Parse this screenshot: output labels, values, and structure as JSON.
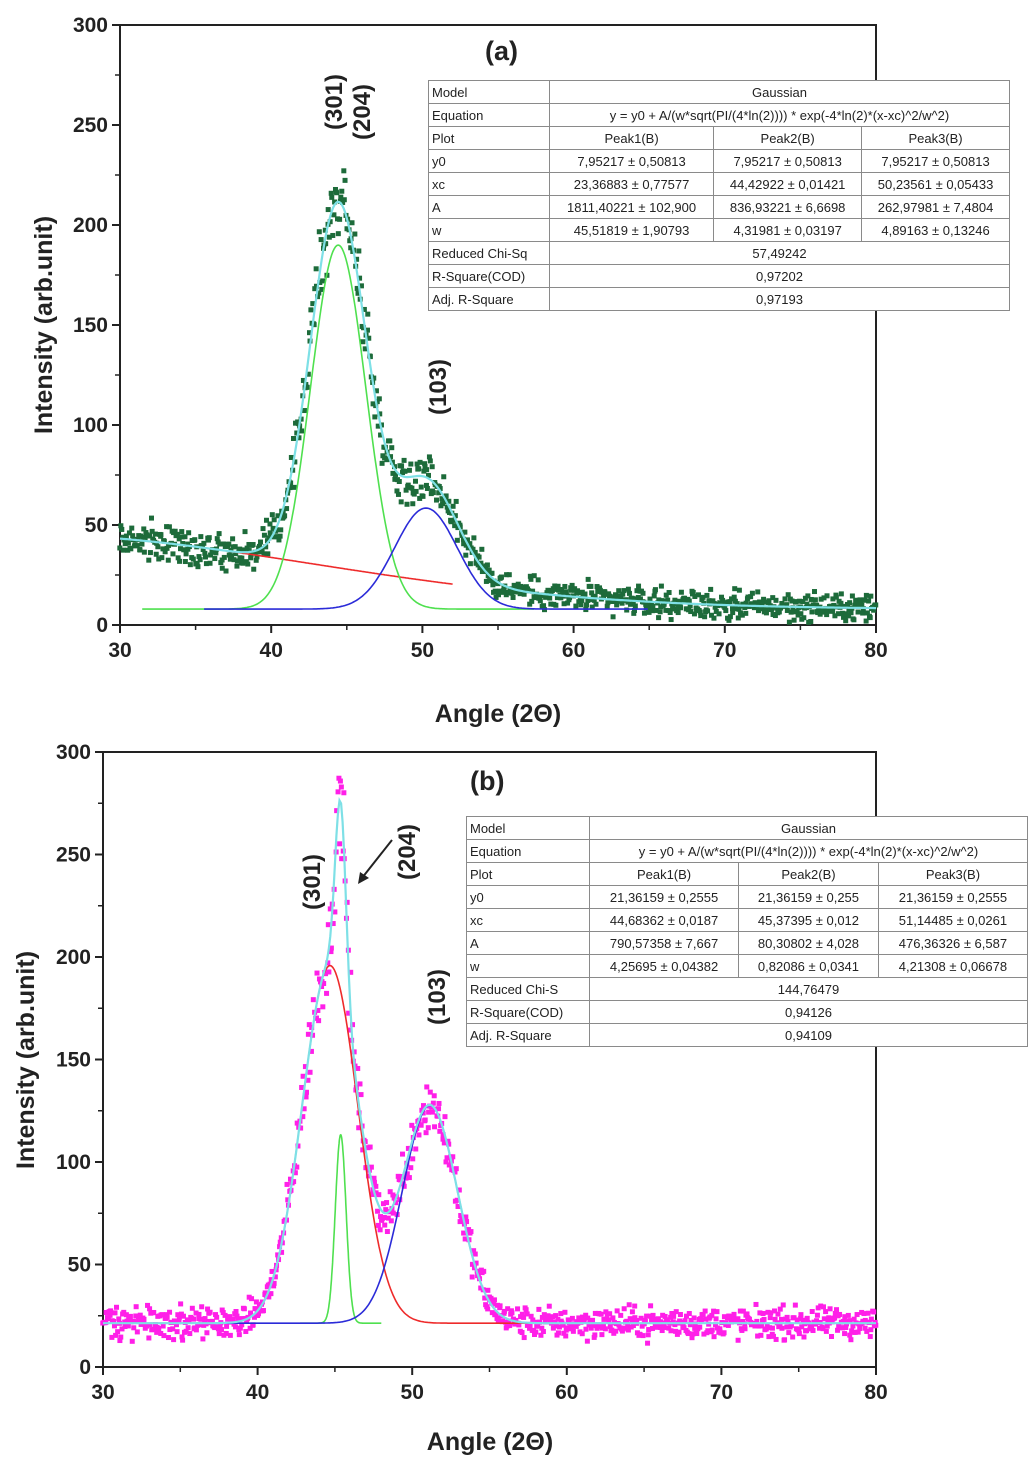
{
  "chart_data": [
    {
      "type": "scatter",
      "panel_label": "(a)",
      "xlabel": "Angle (2Θ)",
      "ylabel": "Intensity (arb.unit)",
      "xlim": [
        30,
        80
      ],
      "ylim": [
        0,
        300
      ],
      "x_ticks": [
        "30",
        "40",
        "50",
        "60",
        "70",
        "80"
      ],
      "y_ticks": [
        "0",
        "50",
        "100",
        "150",
        "200",
        "250",
        "300"
      ],
      "peak_labels": [
        "(301)",
        "(204)",
        "(103)"
      ],
      "colors": {
        "data": "#1d6b3a",
        "envelope": "#7ee0e6",
        "peak1": "#ee2b2b",
        "peak2": "#4fe04f",
        "peak3": "#2b2bd8"
      },
      "series": [
        {
          "name": "Peak1(B)",
          "model": "gaussian",
          "y0": 7.95217,
          "xc": 23.36883,
          "A": 1811.40221,
          "w": 45.51819
        },
        {
          "name": "Peak2(B)",
          "model": "gaussian",
          "y0": 7.95217,
          "xc": 44.42922,
          "A": 836.93221,
          "w": 4.31981
        },
        {
          "name": "Peak3(B)",
          "model": "gaussian",
          "y0": 7.95217,
          "xc": 50.23561,
          "A": 262.97981,
          "w": 4.89163
        }
      ],
      "fit_table": {
        "model_label": "Model",
        "model_value": "Gaussian",
        "equation_label": "Equation",
        "equation": "y = y0 + A/(w*sqrt(PI/(4*ln(2)))) * exp(-4*ln(2)*(x-xc)^2/w^2)",
        "plot_label": "Plot",
        "peaks": [
          "Peak1(B)",
          "Peak2(B)",
          "Peak3(B)"
        ],
        "rows": [
          {
            "label": "y0",
            "values": [
              "7,95217 ± 0,50813",
              "7,95217 ± 0,50813",
              "7,95217 ± 0,50813"
            ]
          },
          {
            "label": "xc",
            "values": [
              "23,36883 ± 0,77577",
              "44,42922 ± 0,01421",
              "50,23561 ± 0,05433"
            ]
          },
          {
            "label": "A",
            "values": [
              "1811,40221 ± 102,900",
              "836,93221 ± 6,6698",
              "262,97981 ± 7,4804"
            ]
          },
          {
            "label": "w",
            "values": [
              "45,51819 ± 1,90793",
              "4,31981 ± 0,03197",
              "4,89163 ± 0,13246"
            ]
          }
        ],
        "stats": [
          {
            "label": "Reduced Chi-Sq",
            "value": "57,49242"
          },
          {
            "label": "R-Square(COD)",
            "value": "0,97202"
          },
          {
            "label": "Adj. R-Square",
            "value": "0,97193"
          }
        ]
      }
    },
    {
      "type": "scatter",
      "panel_label": "(b)",
      "xlabel": "Angle (2Θ)",
      "ylabel": "Intensity (arb.unit)",
      "xlim": [
        30,
        80
      ],
      "ylim": [
        0,
        300
      ],
      "x_ticks": [
        "30",
        "40",
        "50",
        "60",
        "70",
        "80"
      ],
      "y_ticks": [
        "0",
        "50",
        "100",
        "150",
        "200",
        "250",
        "300"
      ],
      "peak_labels": [
        "(301)",
        "(204)",
        "(103)"
      ],
      "colors": {
        "data": "#ff1fe8",
        "envelope": "#7ee0e6",
        "peak1": "#ee2b2b",
        "peak2": "#4fe04f",
        "peak3": "#2b2bd8"
      },
      "series": [
        {
          "name": "Peak1(B)",
          "model": "gaussian",
          "y0": 21.36159,
          "xc": 44.68362,
          "A": 790.57358,
          "w": 4.25695
        },
        {
          "name": "Peak2(B)",
          "model": "gaussian",
          "y0": 21.36159,
          "xc": 45.37395,
          "A": 80.30802,
          "w": 0.82086
        },
        {
          "name": "Peak3(B)",
          "model": "gaussian",
          "y0": 21.36159,
          "xc": 51.14485,
          "A": 476.36326,
          "w": 4.21308
        }
      ],
      "fit_table": {
        "model_label": "Model",
        "model_value": "Gaussian",
        "equation_label": "Equation",
        "equation": "y = y0 + A/(w*sqrt(PI/(4*ln(2)))) * exp(-4*ln(2)*(x-xc)^2/w^2)",
        "plot_label": "Plot",
        "peaks": [
          "Peak1(B)",
          "Peak2(B)",
          "Peak3(B)"
        ],
        "rows": [
          {
            "label": "y0",
            "values": [
              "21,36159 ± 0,2555",
              "21,36159 ± 0,255",
              "21,36159 ± 0,2555"
            ]
          },
          {
            "label": "xc",
            "values": [
              "44,68362 ± 0,0187",
              "45,37395 ± 0,012",
              "51,14485 ± 0,0261"
            ]
          },
          {
            "label": "A",
            "values": [
              "790,57358 ± 7,667",
              "80,30802 ± 4,028",
              "476,36326 ± 6,587"
            ]
          },
          {
            "label": "w",
            "values": [
              "4,25695 ± 0,04382",
              "0,82086 ± 0,0341",
              "4,21308 ± 0,06678"
            ]
          }
        ],
        "stats": [
          {
            "label": "Reduced Chi-S",
            "value": "144,76479"
          },
          {
            "label": "R-Square(COD)",
            "value": "0,94126"
          },
          {
            "label": "Adj. R-Square",
            "value": "0,94109"
          }
        ]
      }
    }
  ]
}
